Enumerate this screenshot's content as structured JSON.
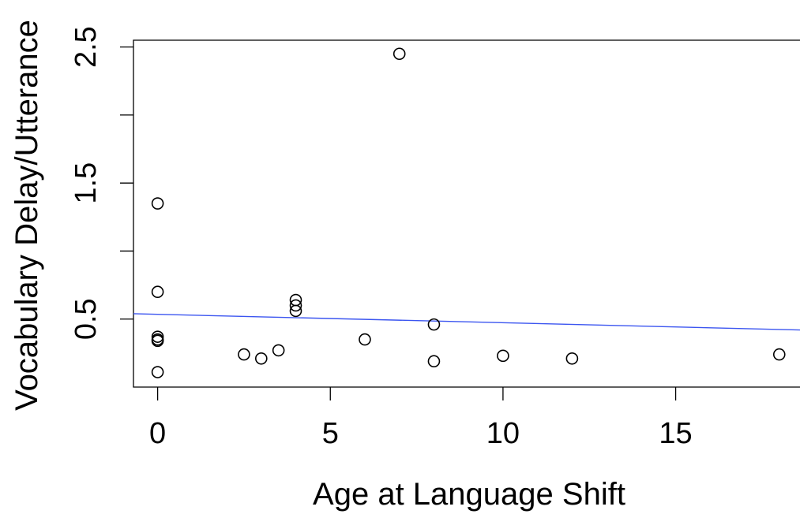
{
  "chart_data": {
    "type": "scatter",
    "title": "",
    "xlabel": "Age at Language Shift",
    "ylabel": "Vocabulary Delay/Utterance",
    "xlim": [
      -0.7,
      18.6
    ],
    "ylim": [
      0.0,
      2.55
    ],
    "x_ticks": [
      0,
      5,
      10,
      15
    ],
    "x_tick_labels": [
      "0",
      "5",
      "10",
      "15"
    ],
    "y_ticks": [
      0.5,
      1.0,
      1.5,
      2.0,
      2.5
    ],
    "y_tick_labels": [
      "0.5",
      "",
      "1.5",
      "",
      "2.5"
    ],
    "grid": false,
    "legend": "none",
    "series": [
      {
        "points": [
          {
            "x": 0,
            "y": 1.35
          },
          {
            "x": 0,
            "y": 0.7
          },
          {
            "x": 0,
            "y": 0.37
          },
          {
            "x": 0,
            "y": 0.35
          },
          {
            "x": 0,
            "y": 0.34
          },
          {
            "x": 0,
            "y": 0.11
          },
          {
            "x": 2.5,
            "y": 0.24
          },
          {
            "x": 3,
            "y": 0.21
          },
          {
            "x": 3.5,
            "y": 0.27
          },
          {
            "x": 4,
            "y": 0.64
          },
          {
            "x": 4,
            "y": 0.6
          },
          {
            "x": 4,
            "y": 0.56
          },
          {
            "x": 6,
            "y": 0.35
          },
          {
            "x": 7,
            "y": 2.45
          },
          {
            "x": 8,
            "y": 0.46
          },
          {
            "x": 8,
            "y": 0.19
          },
          {
            "x": 10,
            "y": 0.23
          },
          {
            "x": 12,
            "y": 0.21
          },
          {
            "x": 18,
            "y": 0.24
          }
        ]
      }
    ],
    "trend_line": {
      "intercept": 0.535,
      "slope": -0.0062,
      "color": "#3b55f0"
    }
  }
}
